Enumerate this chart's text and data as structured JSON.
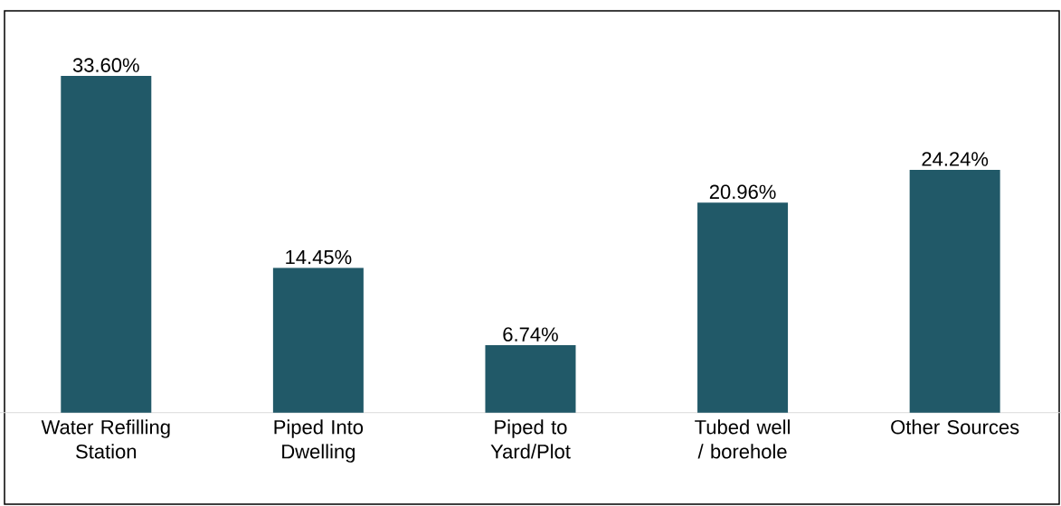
{
  "chart_data": {
    "type": "bar",
    "categories": [
      "Water Refilling Station",
      "Piped Into Dwelling",
      "Piped to Yard/Plot",
      "Tubed well / borehole",
      "Other Sources"
    ],
    "values": [
      33.6,
      14.45,
      6.74,
      20.96,
      24.24
    ],
    "value_labels": [
      "33.60%",
      "14.45%",
      "6.74%",
      "20.96%",
      "24.24%"
    ],
    "color": "#215968"
  }
}
